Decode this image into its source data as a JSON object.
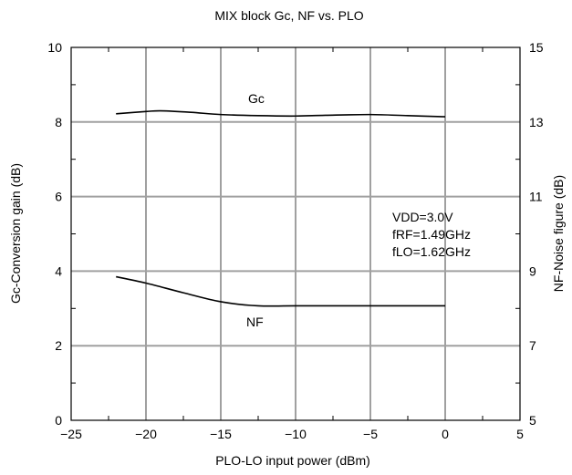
{
  "chart_data": {
    "type": "line",
    "title": "MIX block Gc, NF vs. PLO",
    "xlabel": "PLO-LO input power (dBm)",
    "ylabel_left": "Gc-Conversion gain (dB)",
    "ylabel_right": "NF-Noise figure (dB)",
    "xlim": [
      -25,
      5
    ],
    "ylim_left": [
      0,
      10
    ],
    "ylim_right": [
      5,
      15
    ],
    "x_ticks": [
      "−25",
      "−20",
      "−15",
      "−10",
      "−5",
      "0",
      "5"
    ],
    "y_left_ticks": [
      "0",
      "2",
      "4",
      "6",
      "8",
      "10"
    ],
    "y_right_ticks": [
      "5",
      "7",
      "9",
      "11",
      "13",
      "15"
    ],
    "grid": true,
    "series": [
      {
        "name": "Gc",
        "axis": "left",
        "x": [
          -22,
          -20,
          -19,
          -17,
          -15,
          -12.5,
          -10,
          -8,
          -5,
          -2.5,
          0
        ],
        "y": [
          8.22,
          8.28,
          8.3,
          8.26,
          8.2,
          8.17,
          8.16,
          8.18,
          8.2,
          8.17,
          8.14
        ]
      },
      {
        "name": "NF",
        "axis": "right",
        "x": [
          -22,
          -20,
          -17.5,
          -15,
          -12.5,
          -10,
          -5,
          0
        ],
        "y": [
          8.85,
          8.68,
          8.42,
          8.18,
          8.07,
          8.07,
          8.07,
          8.07
        ]
      }
    ],
    "annotations": {
      "gc_label": "Gc",
      "nf_label": "NF",
      "conditions": [
        "VDD=3.0V",
        "fRF=1.49GHz",
        "fLO=1.62GHz"
      ]
    }
  }
}
